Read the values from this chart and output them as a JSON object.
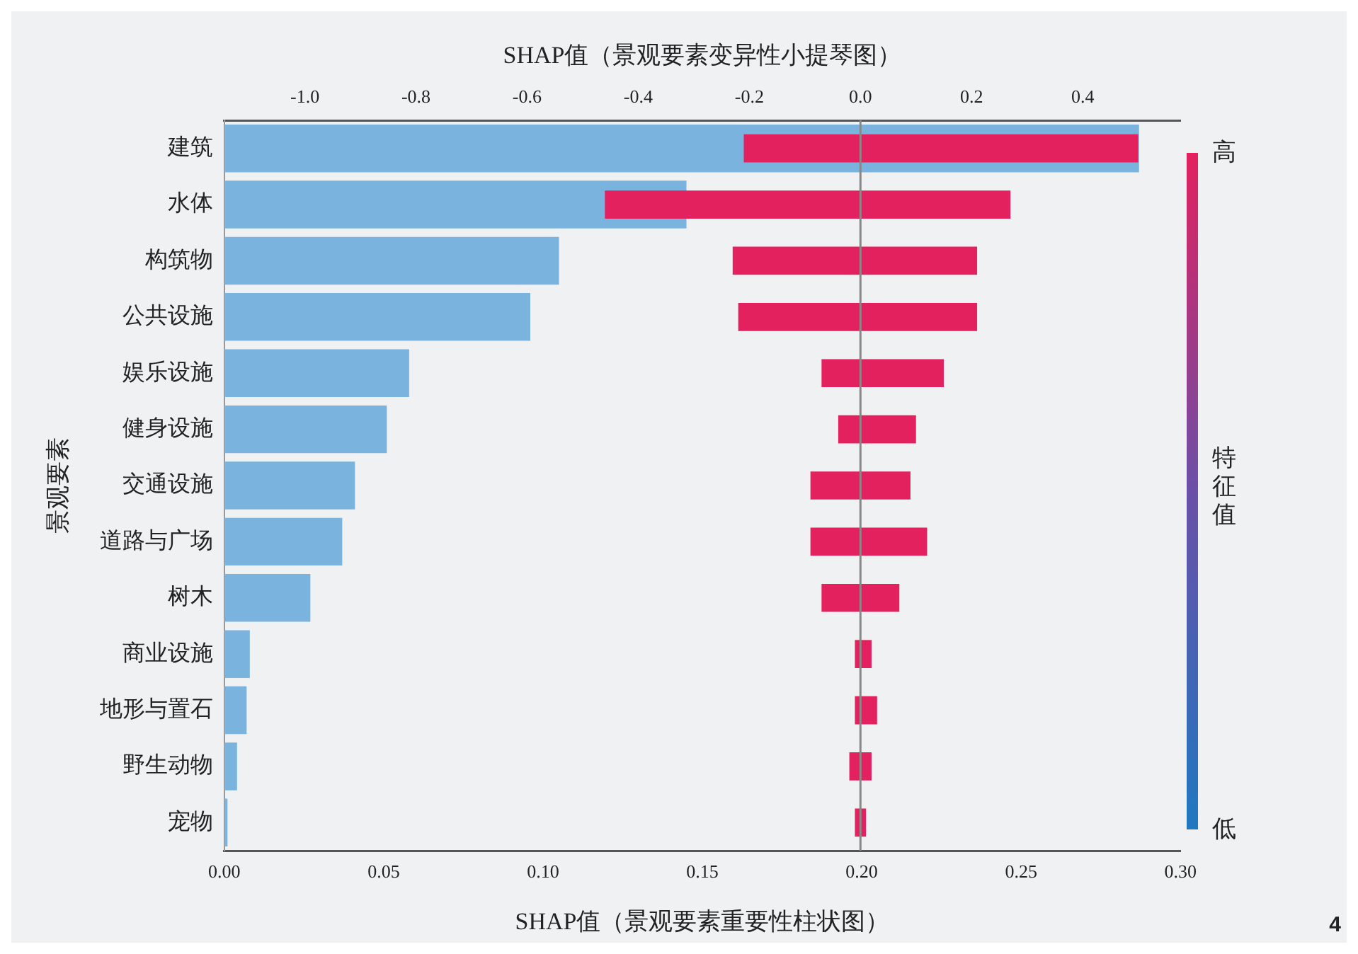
{
  "chart_data": {
    "type": "bar",
    "orientation": "horizontal",
    "xlabel": "SHAP值（景观要素重要性柱状图）",
    "x2label": "SHAP值（景观要素变异性小提琴图）",
    "ylabel": "景观要素",
    "clabel": "特征值",
    "categories": [
      "建筑",
      "水体",
      "构筑物",
      "公共设施",
      "娱乐设施",
      "健身设施",
      "交通设施",
      "道路与广场",
      "树木",
      "商业设施",
      "地形与置石",
      "野生动物",
      "宠物"
    ],
    "series": [
      {
        "color": "#7ab3de",
        "values": [
          0.287,
          0.145,
          0.105,
          0.096,
          0.058,
          0.051,
          0.041,
          0.037,
          0.027,
          0.008,
          0.007,
          0.004,
          0.001
        ]
      },
      {
        "axis": "x2",
        "color": "#e3215e",
        "base": [
          -0.21,
          -0.46,
          -0.23,
          -0.22,
          -0.07,
          -0.04,
          -0.09,
          -0.09,
          -0.07,
          -0.01,
          -0.01,
          -0.02,
          -0.01
        ],
        "values": [
          0.71,
          0.73,
          0.44,
          0.43,
          0.22,
          0.14,
          0.18,
          0.21,
          0.14,
          0.03,
          0.04,
          0.04,
          0.02
        ]
      }
    ],
    "xlim": [
      0,
      0.3
    ],
    "xticks": [
      {
        "value": 0,
        "label": "0.00"
      },
      {
        "value": 0.05,
        "label": "0.05"
      },
      {
        "value": 0.1,
        "label": "0.10"
      },
      {
        "value": 0.15,
        "label": "0.15"
      },
      {
        "value": 0.2,
        "label": "0.20"
      },
      {
        "value": 0.25,
        "label": "0.25"
      },
      {
        "value": 0.3,
        "label": "0.30"
      }
    ],
    "x2lim": [
      -1.145,
      0.576
    ],
    "x2ticks": [
      {
        "value": -1,
        "label": "-1.0"
      },
      {
        "value": -0.8,
        "label": "-0.8"
      },
      {
        "value": -0.6,
        "label": "-0.6"
      },
      {
        "value": -0.4,
        "label": "-0.4"
      },
      {
        "value": -0.2,
        "label": "-0.2"
      },
      {
        "value": 0,
        "label": "0.0"
      },
      {
        "value": 0.2,
        "label": "0.2"
      },
      {
        "value": 0.4,
        "label": "0.4"
      }
    ],
    "ref_lines": [
      {
        "axis": "x2",
        "value": 0,
        "color": "#888888"
      }
    ],
    "clim": [
      0,
      1
    ],
    "cticks": [
      {
        "value": 1,
        "label": "高"
      },
      {
        "value": 0,
        "label": "低"
      }
    ],
    "grid": false,
    "legend": false,
    "annotations": [
      "4"
    ]
  }
}
